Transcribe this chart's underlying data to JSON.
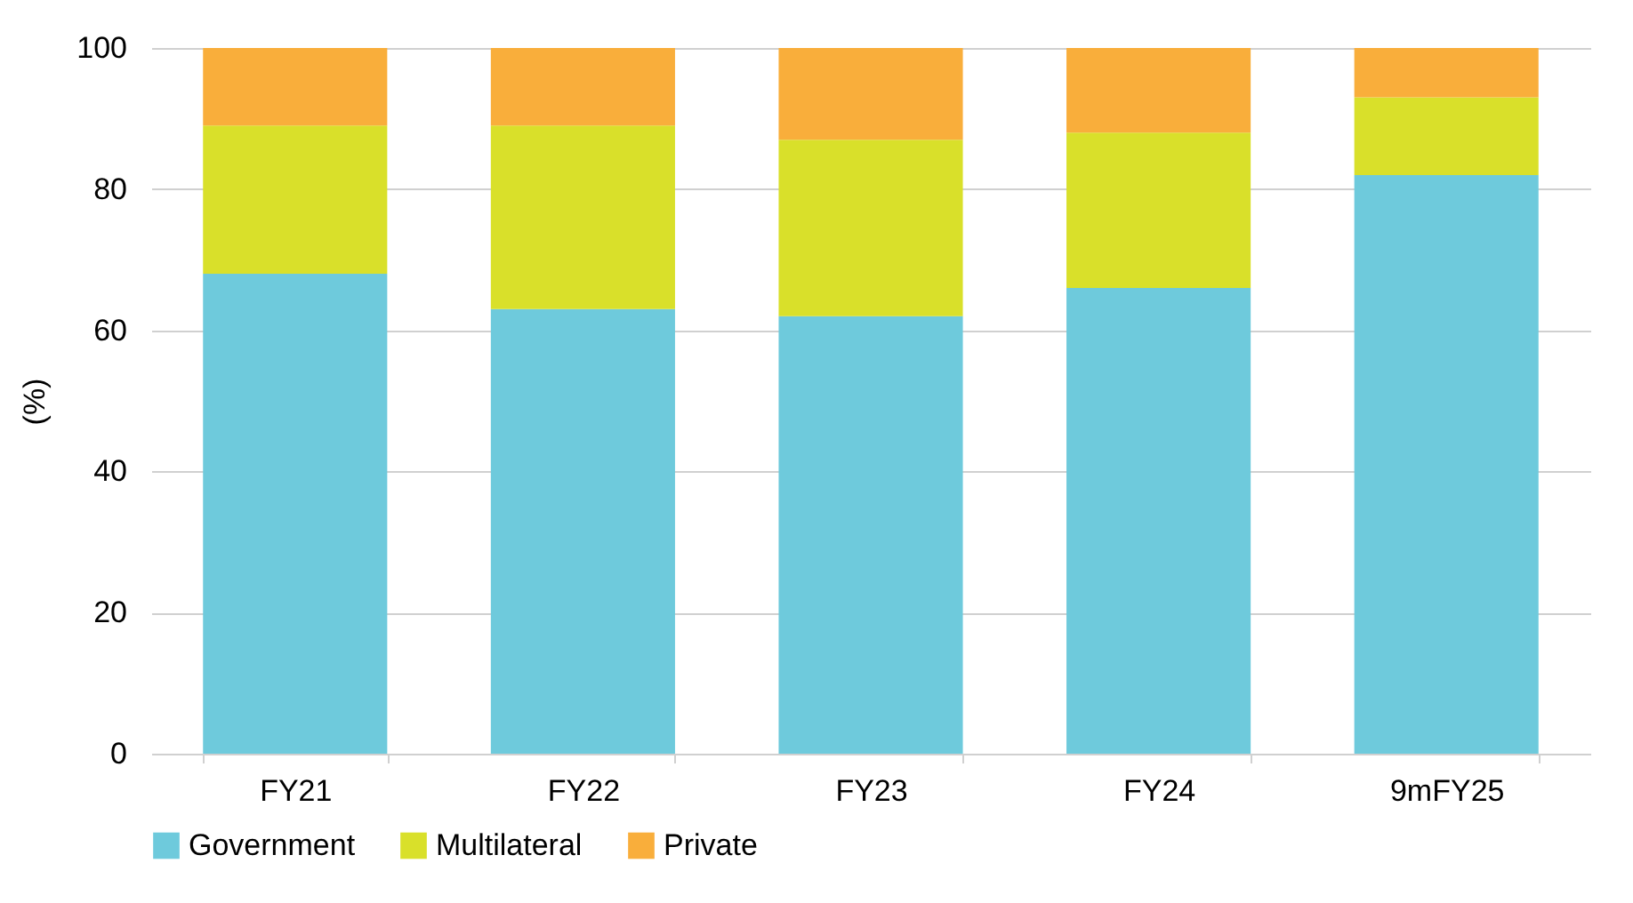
{
  "chart_data": {
    "type": "bar",
    "stacked": true,
    "ylabel": "(%)",
    "categories": [
      "FY21",
      "FY22",
      "FY23",
      "FY24",
      "9mFY25"
    ],
    "series": [
      {
        "name": "Government",
        "color": "#6ecadc",
        "values": [
          68,
          63,
          62,
          66,
          82
        ]
      },
      {
        "name": "Multilateral",
        "color": "#d9e02a",
        "values": [
          21,
          26,
          25,
          22,
          11
        ]
      },
      {
        "name": "Private",
        "color": "#f9ae3b",
        "values": [
          11,
          11,
          13,
          12,
          7
        ]
      }
    ],
    "ylim": [
      0,
      100
    ],
    "yticks": [
      0,
      20,
      40,
      60,
      80,
      100
    ],
    "grid": "y",
    "legend": "bottom"
  }
}
